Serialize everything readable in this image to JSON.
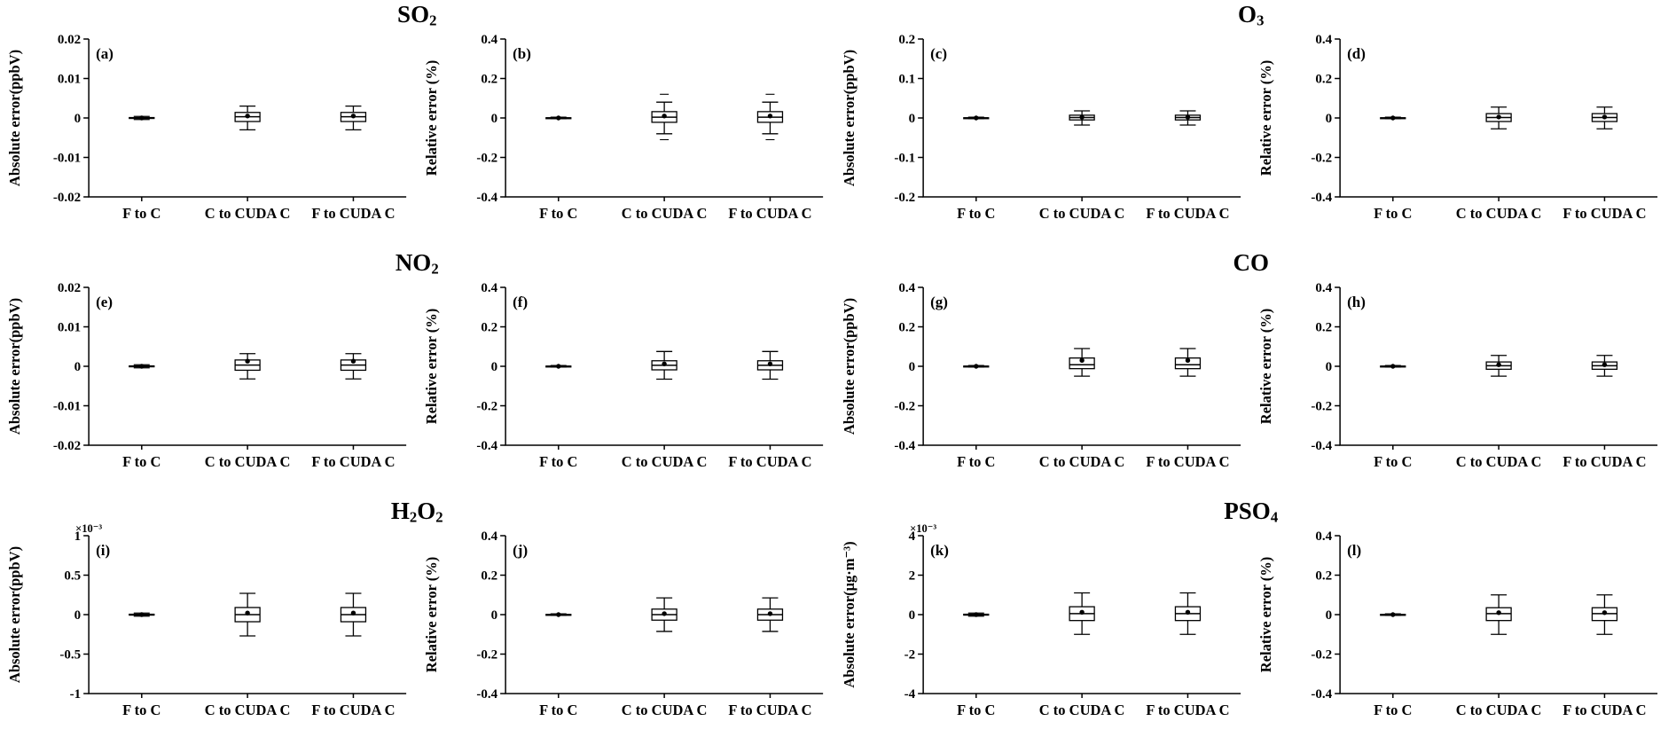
{
  "figure": {
    "background": "#ffffff",
    "ink": "#000000",
    "categories": [
      "F to C",
      "C to CUDA C",
      "F to CUDA C"
    ],
    "groups": [
      {
        "name": "SO2",
        "title": [
          {
            "t": "SO"
          },
          {
            "t": "2",
            "pos": "sub"
          }
        ]
      },
      {
        "name": "O3",
        "title": [
          {
            "t": "O"
          },
          {
            "t": "3",
            "pos": "sub"
          }
        ]
      },
      {
        "name": "NO2",
        "title": [
          {
            "t": "NO"
          },
          {
            "t": "2",
            "pos": "sub"
          }
        ]
      },
      {
        "name": "CO",
        "title": [
          {
            "t": "CO"
          }
        ]
      },
      {
        "name": "H2O2",
        "title": [
          {
            "t": "H"
          },
          {
            "t": "2",
            "pos": "sub"
          },
          {
            "t": "O"
          },
          {
            "t": "2",
            "pos": "sub"
          }
        ]
      },
      {
        "name": "PSO4",
        "title": [
          {
            "t": "PSO"
          },
          {
            "t": "4",
            "pos": "sub"
          }
        ]
      }
    ]
  },
  "chart_data": [
    {
      "letter": "(a)",
      "group": "SO2",
      "type": "boxplot",
      "ylabel": "Absolute error(ppbV)",
      "offset": null,
      "ylim": [
        -0.02,
        0.02
      ],
      "yticks": [
        {
          "v": 0.02,
          "l": "0.02"
        },
        {
          "v": 0.01,
          "l": "0.01"
        },
        {
          "v": 0,
          "l": "0"
        },
        {
          "v": -0.01,
          "l": "-0.01"
        },
        {
          "v": -0.02,
          "l": "-0.02"
        }
      ],
      "categories": [
        "F to C",
        "C to CUDA C",
        "F to CUDA C"
      ],
      "boxes": [
        {
          "lo": -0.0004,
          "q1": -0.0001,
          "med": 0,
          "q3": 0.0001,
          "hi": 0.0004,
          "mean": 0
        },
        {
          "lo": -0.003,
          "q1": -0.0009,
          "med": 0.0003,
          "q3": 0.0014,
          "hi": 0.003,
          "mean": 0.0005
        },
        {
          "lo": -0.003,
          "q1": -0.0009,
          "med": 0.0003,
          "q3": 0.0014,
          "hi": 0.003,
          "mean": 0.0005
        }
      ]
    },
    {
      "letter": "(b)",
      "group": "SO2",
      "type": "boxplot",
      "ylabel": "Relative error (%)",
      "offset": null,
      "ylim": [
        -0.4,
        0.4
      ],
      "yticks": [
        {
          "v": 0.4,
          "l": "0.4"
        },
        {
          "v": 0.2,
          "l": "0.2"
        },
        {
          "v": 0,
          "l": "0"
        },
        {
          "v": -0.2,
          "l": "-0.2"
        },
        {
          "v": -0.4,
          "l": "-0.4"
        }
      ],
      "categories": [
        "F to C",
        "C to CUDA C",
        "F to CUDA C"
      ],
      "boxes": [
        {
          "lo": -0.004,
          "q1": -0.001,
          "med": 0,
          "q3": 0.001,
          "hi": 0.004,
          "mean": 0
        },
        {
          "lo": -0.08,
          "q1": -0.022,
          "med": 0.004,
          "q3": 0.032,
          "hi": 0.08,
          "mean": 0.01,
          "outliers": [
            0.12,
            -0.11
          ]
        },
        {
          "lo": -0.08,
          "q1": -0.022,
          "med": 0.004,
          "q3": 0.032,
          "hi": 0.08,
          "mean": 0.01,
          "outliers": [
            0.12,
            -0.11
          ]
        }
      ]
    },
    {
      "letter": "(c)",
      "group": "O3",
      "type": "boxplot",
      "ylabel": "Absolute error(ppbV)",
      "offset": null,
      "ylim": [
        -0.2,
        0.2
      ],
      "yticks": [
        {
          "v": 0.2,
          "l": "0.2"
        },
        {
          "v": 0.1,
          "l": "0.1"
        },
        {
          "v": 0,
          "l": "0"
        },
        {
          "v": -0.1,
          "l": "-0.1"
        },
        {
          "v": -0.2,
          "l": "-0.2"
        }
      ],
      "categories": [
        "F to C",
        "C to CUDA C",
        "F to CUDA C"
      ],
      "boxes": [
        {
          "lo": -0.002,
          "q1": -0.0005,
          "med": 0,
          "q3": 0.0005,
          "hi": 0.002,
          "mean": 0
        },
        {
          "lo": -0.018,
          "q1": -0.005,
          "med": 0.001,
          "q3": 0.007,
          "hi": 0.018,
          "mean": 0.002
        },
        {
          "lo": -0.018,
          "q1": -0.005,
          "med": 0.001,
          "q3": 0.007,
          "hi": 0.018,
          "mean": 0.002
        }
      ]
    },
    {
      "letter": "(d)",
      "group": "O3",
      "type": "boxplot",
      "ylabel": "Relative error (%)",
      "offset": null,
      "ylim": [
        -0.4,
        0.4
      ],
      "yticks": [
        {
          "v": 0.4,
          "l": "0.4"
        },
        {
          "v": 0.2,
          "l": "0.2"
        },
        {
          "v": 0,
          "l": "0"
        },
        {
          "v": -0.2,
          "l": "-0.2"
        },
        {
          "v": -0.4,
          "l": "-0.4"
        }
      ],
      "categories": [
        "F to C",
        "C to CUDA C",
        "F to CUDA C"
      ],
      "boxes": [
        {
          "lo": -0.004,
          "q1": -0.001,
          "med": 0,
          "q3": 0.001,
          "hi": 0.004,
          "mean": 0
        },
        {
          "lo": -0.055,
          "q1": -0.018,
          "med": 0.002,
          "q3": 0.022,
          "hi": 0.055,
          "mean": 0.005
        },
        {
          "lo": -0.055,
          "q1": -0.018,
          "med": 0.002,
          "q3": 0.022,
          "hi": 0.055,
          "mean": 0.005
        }
      ]
    },
    {
      "letter": "(e)",
      "group": "NO2",
      "type": "boxplot",
      "ylabel": "Absolute error(ppbV)",
      "offset": null,
      "ylim": [
        -0.02,
        0.02
      ],
      "yticks": [
        {
          "v": 0.02,
          "l": "0.02"
        },
        {
          "v": 0.01,
          "l": "0.01"
        },
        {
          "v": 0,
          "l": "0"
        },
        {
          "v": -0.01,
          "l": "-0.01"
        },
        {
          "v": -0.02,
          "l": "-0.02"
        }
      ],
      "categories": [
        "F to C",
        "C to CUDA C",
        "F to CUDA C"
      ],
      "boxes": [
        {
          "lo": -0.0004,
          "q1": -0.0001,
          "med": 0,
          "q3": 0.0001,
          "hi": 0.0004,
          "mean": 0
        },
        {
          "lo": -0.0032,
          "q1": -0.001,
          "med": 0.0003,
          "q3": 0.0016,
          "hi": 0.0032,
          "mean": 0.0013
        },
        {
          "lo": -0.0032,
          "q1": -0.001,
          "med": 0.0003,
          "q3": 0.0016,
          "hi": 0.0032,
          "mean": 0.0013
        }
      ]
    },
    {
      "letter": "(f)",
      "group": "NO2",
      "type": "boxplot",
      "ylabel": "Relative error (%)",
      "offset": null,
      "ylim": [
        -0.4,
        0.4
      ],
      "yticks": [
        {
          "v": 0.4,
          "l": "0.4"
        },
        {
          "v": 0.2,
          "l": "0.2"
        },
        {
          "v": 0,
          "l": "0"
        },
        {
          "v": -0.2,
          "l": "-0.2"
        },
        {
          "v": -0.4,
          "l": "-0.4"
        }
      ],
      "categories": [
        "F to C",
        "C to CUDA C",
        "F to CUDA C"
      ],
      "boxes": [
        {
          "lo": -0.004,
          "q1": -0.001,
          "med": 0,
          "q3": 0.001,
          "hi": 0.004,
          "mean": 0
        },
        {
          "lo": -0.065,
          "q1": -0.018,
          "med": 0.005,
          "q3": 0.028,
          "hi": 0.075,
          "mean": 0.012
        },
        {
          "lo": -0.065,
          "q1": -0.018,
          "med": 0.005,
          "q3": 0.028,
          "hi": 0.075,
          "mean": 0.012
        }
      ]
    },
    {
      "letter": "(g)",
      "group": "CO",
      "type": "boxplot",
      "ylabel": "Absolute error(ppbV)",
      "offset": null,
      "ylim": [
        -0.4,
        0.4
      ],
      "yticks": [
        {
          "v": 0.4,
          "l": "0.4"
        },
        {
          "v": 0.2,
          "l": "0.2"
        },
        {
          "v": 0,
          "l": "0"
        },
        {
          "v": -0.2,
          "l": "-0.2"
        },
        {
          "v": -0.4,
          "l": "-0.4"
        }
      ],
      "categories": [
        "F to C",
        "C to CUDA C",
        "F to CUDA C"
      ],
      "boxes": [
        {
          "lo": -0.004,
          "q1": -0.001,
          "med": 0,
          "q3": 0.001,
          "hi": 0.004,
          "mean": 0
        },
        {
          "lo": -0.05,
          "q1": -0.012,
          "med": 0.008,
          "q3": 0.042,
          "hi": 0.09,
          "mean": 0.03
        },
        {
          "lo": -0.05,
          "q1": -0.012,
          "med": 0.008,
          "q3": 0.042,
          "hi": 0.09,
          "mean": 0.03
        }
      ]
    },
    {
      "letter": "(h)",
      "group": "CO",
      "type": "boxplot",
      "ylabel": "Relative error (%)",
      "offset": null,
      "ylim": [
        -0.4,
        0.4
      ],
      "yticks": [
        {
          "v": 0.4,
          "l": "0.4"
        },
        {
          "v": 0.2,
          "l": "0.2"
        },
        {
          "v": 0,
          "l": "0"
        },
        {
          "v": -0.2,
          "l": "-0.2"
        },
        {
          "v": -0.4,
          "l": "-0.4"
        }
      ],
      "categories": [
        "F to C",
        "C to CUDA C",
        "F to CUDA C"
      ],
      "boxes": [
        {
          "lo": -0.004,
          "q1": -0.001,
          "med": 0,
          "q3": 0.001,
          "hi": 0.004,
          "mean": 0
        },
        {
          "lo": -0.05,
          "q1": -0.015,
          "med": 0.003,
          "q3": 0.022,
          "hi": 0.055,
          "mean": 0.008
        },
        {
          "lo": -0.05,
          "q1": -0.015,
          "med": 0.003,
          "q3": 0.022,
          "hi": 0.055,
          "mean": 0.008
        }
      ]
    },
    {
      "letter": "(i)",
      "group": "H2O2",
      "type": "boxplot",
      "ylabel": "Absolute error(ppbV)",
      "offset": "×10⁻³",
      "unit_scale": 0.001,
      "ylim": [
        -1,
        1
      ],
      "yticks": [
        {
          "v": 1,
          "l": "1"
        },
        {
          "v": 0.5,
          "l": "0.5"
        },
        {
          "v": 0,
          "l": "0"
        },
        {
          "v": -0.5,
          "l": "-0.5"
        },
        {
          "v": -1,
          "l": "-1"
        }
      ],
      "categories": [
        "F to C",
        "C to CUDA C",
        "F to CUDA C"
      ],
      "boxes": [
        {
          "lo": -0.02,
          "q1": -0.005,
          "med": 0,
          "q3": 0.005,
          "hi": 0.02,
          "mean": 0
        },
        {
          "lo": -0.27,
          "q1": -0.09,
          "med": 0,
          "q3": 0.09,
          "hi": 0.27,
          "mean": 0.02
        },
        {
          "lo": -0.27,
          "q1": -0.09,
          "med": 0,
          "q3": 0.09,
          "hi": 0.27,
          "mean": 0.02
        }
      ]
    },
    {
      "letter": "(j)",
      "group": "H2O2",
      "type": "boxplot",
      "ylabel": "Relative error (%)",
      "offset": null,
      "ylim": [
        -0.4,
        0.4
      ],
      "yticks": [
        {
          "v": 0.4,
          "l": "0.4"
        },
        {
          "v": 0.2,
          "l": "0.2"
        },
        {
          "v": 0,
          "l": "0"
        },
        {
          "v": -0.2,
          "l": "-0.2"
        },
        {
          "v": -0.4,
          "l": "-0.4"
        }
      ],
      "categories": [
        "F to C",
        "C to CUDA C",
        "F to CUDA C"
      ],
      "boxes": [
        {
          "lo": -0.004,
          "q1": -0.001,
          "med": 0,
          "q3": 0.001,
          "hi": 0.004,
          "mean": 0
        },
        {
          "lo": -0.085,
          "q1": -0.028,
          "med": 0,
          "q3": 0.028,
          "hi": 0.085,
          "mean": 0.005
        },
        {
          "lo": -0.085,
          "q1": -0.028,
          "med": 0,
          "q3": 0.028,
          "hi": 0.085,
          "mean": 0.005
        }
      ]
    },
    {
      "letter": "(k)",
      "group": "PSO4",
      "type": "boxplot",
      "ylabel": "Absolute error(μg·m⁻³)",
      "offset": "×10⁻³",
      "unit_scale": 0.001,
      "ylim": [
        -4,
        4
      ],
      "yticks": [
        {
          "v": 4,
          "l": "4"
        },
        {
          "v": 2,
          "l": "2"
        },
        {
          "v": 0,
          "l": "0"
        },
        {
          "v": -2,
          "l": "-2"
        },
        {
          "v": -4,
          "l": "-4"
        }
      ],
      "categories": [
        "F to C",
        "C to CUDA C",
        "F to CUDA C"
      ],
      "boxes": [
        {
          "lo": -0.08,
          "q1": -0.02,
          "med": 0,
          "q3": 0.02,
          "hi": 0.08,
          "mean": 0
        },
        {
          "lo": -1.0,
          "q1": -0.3,
          "med": 0.05,
          "q3": 0.4,
          "hi": 1.1,
          "mean": 0.12
        },
        {
          "lo": -1.0,
          "q1": -0.3,
          "med": 0.05,
          "q3": 0.4,
          "hi": 1.1,
          "mean": 0.12
        }
      ]
    },
    {
      "letter": "(l)",
      "group": "PSO4",
      "type": "boxplot",
      "ylabel": "Relative error (%)",
      "offset": null,
      "ylim": [
        -0.4,
        0.4
      ],
      "yticks": [
        {
          "v": 0.4,
          "l": "0.4"
        },
        {
          "v": 0.2,
          "l": "0.2"
        },
        {
          "v": 0,
          "l": "0"
        },
        {
          "v": -0.2,
          "l": "-0.2"
        },
        {
          "v": -0.4,
          "l": "-0.4"
        }
      ],
      "categories": [
        "F to C",
        "C to CUDA C",
        "F to CUDA C"
      ],
      "boxes": [
        {
          "lo": -0.004,
          "q1": -0.001,
          "med": 0,
          "q3": 0.001,
          "hi": 0.004,
          "mean": 0
        },
        {
          "lo": -0.1,
          "q1": -0.03,
          "med": 0.005,
          "q3": 0.035,
          "hi": 0.1,
          "mean": 0.01
        },
        {
          "lo": -0.1,
          "q1": -0.03,
          "med": 0.005,
          "q3": 0.035,
          "hi": 0.1,
          "mean": 0.01
        }
      ]
    }
  ]
}
